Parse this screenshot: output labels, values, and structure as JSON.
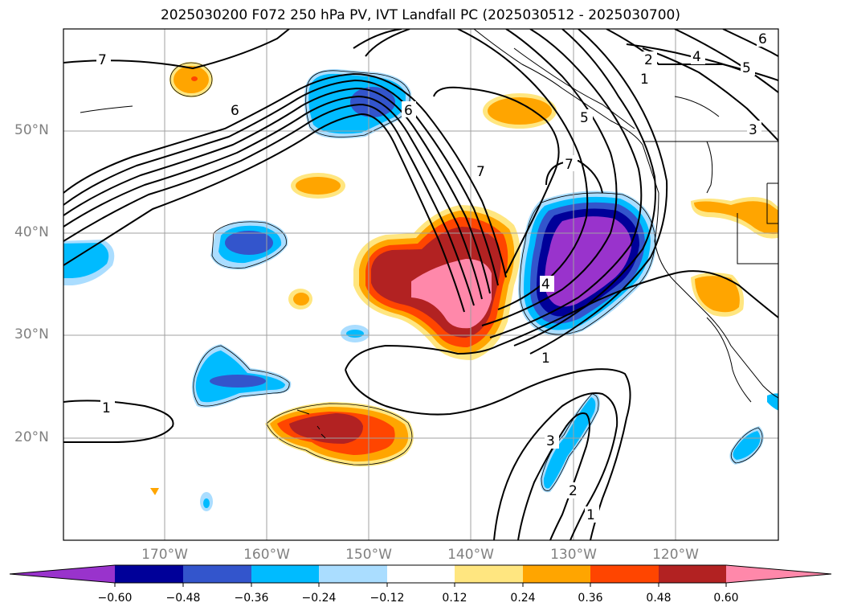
{
  "title": "2025030200 F072 250 hPa PV, IVT Landfall PC (2025030512 - 2025030700)",
  "axes": {
    "lat_labels": [
      "50°N",
      "40°N",
      "30°N",
      "20°N"
    ],
    "lon_labels": [
      "170°W",
      "160°W",
      "150°W",
      "140°W",
      "130°W",
      "120°W"
    ]
  },
  "colorbar": {
    "ticks": [
      "−0.60",
      "−0.48",
      "−0.36",
      "−0.24",
      "−0.12",
      "0.12",
      "0.24",
      "0.36",
      "0.48",
      "0.60"
    ],
    "colors": [
      "#9933cc",
      "#000099",
      "#3355cc",
      "#00bbff",
      "#aaddff",
      "#ffffff",
      "#ffe680",
      "#ffa500",
      "#ff4500",
      "#b22222",
      "#ff88aa"
    ]
  },
  "contour_labels": {
    "c7a": "7",
    "c6a": "6",
    "c6b": "6",
    "c7b": "7",
    "c7c": "7",
    "c2a": "2",
    "c4a": "4",
    "c5a": "5",
    "c1a": "1",
    "c3a": "3",
    "c5b": "5",
    "c4b": "4",
    "c1b": "1",
    "c1c": "1",
    "c3b": "3",
    "c2b": "2",
    "c1d": "1",
    "c6c": "6"
  }
}
